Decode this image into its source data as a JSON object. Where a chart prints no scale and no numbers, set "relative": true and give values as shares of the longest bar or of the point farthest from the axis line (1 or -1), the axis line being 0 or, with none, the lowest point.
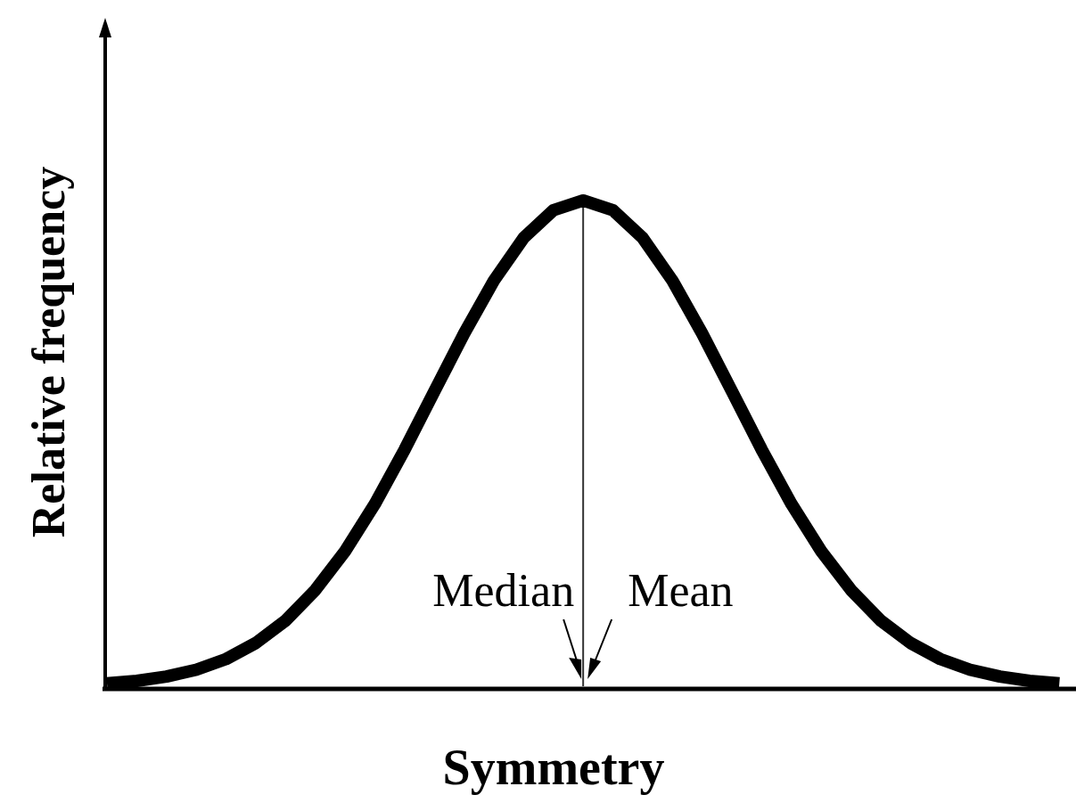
{
  "chart_data": {
    "type": "line",
    "relative": true,
    "xlabel": "Symmetry",
    "ylabel": "Relative frequency",
    "categories": [
      null,
      null,
      null,
      null,
      null,
      null,
      null,
      null,
      null,
      null,
      null,
      null,
      null,
      null,
      null,
      null,
      null,
      null,
      null,
      null,
      null,
      null,
      null,
      null,
      null,
      null,
      null,
      null,
      null,
      null,
      null,
      null,
      null
    ],
    "series": [
      {
        "color": "#000000",
        "values": [
          0.006,
          0.011,
          0.02,
          0.034,
          0.056,
          0.089,
          0.135,
          0.198,
          0.278,
          0.375,
          0.487,
          0.607,
          0.726,
          0.835,
          0.923,
          0.98,
          1,
          0.98,
          0.923,
          0.835,
          0.726,
          0.607,
          0.487,
          0.375,
          0.278,
          0.198,
          0.135,
          0.089,
          0.056,
          0.034,
          0.02,
          0.011,
          0.006
        ]
      }
    ],
    "annotations": [
      "Median",
      "Mean"
    ]
  }
}
